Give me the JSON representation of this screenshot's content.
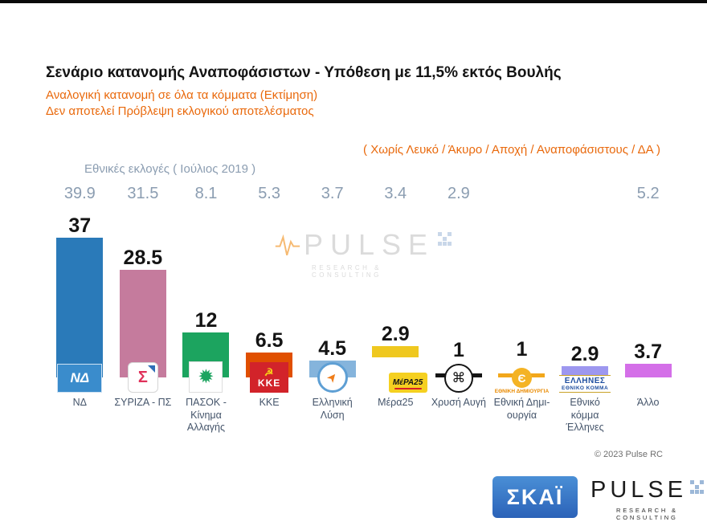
{
  "header": {
    "title": "Σενάριο κατανομής Αναποφάσιστων - Υπόθεση με 11,5% εκτός Βουλής",
    "subtitle1": "Αναλογική κατανομή σε όλα τα κόμματα   (Εκτίμηση)",
    "subtitle2": "Δεν αποτελεί Πρόβλεψη εκλογικού αποτελέσματος",
    "exclusion_note": "( Χωρίς Λευκό / Άκυρο / Αποχή / Αναποφάσιστους / ΔΑ )",
    "previous_label": "Εθνικές εκλογές  ( Ιούλιος 2019 )"
  },
  "chart_data": {
    "type": "bar",
    "title": "Σενάριο κατανομής Αναποφάσιστων - Υπόθεση με 11,5% εκτός Βουλής",
    "subtitle": "Αναλογική κατανομή σε όλα τα κόμματα (Εκτίμηση) - Δεν αποτελεί Πρόβλεψη εκλογικού αποτελέσματος",
    "categories": [
      "ΝΔ",
      "ΣΥΡΙΖΑ - ΠΣ",
      "ΠΑΣΟΚ - Κίνημα Αλλαγής",
      "ΚΚΕ",
      "Ελληνική Λύση",
      "Μέρα25",
      "Χρυσή Αυγή",
      "Εθνική Δημι- ουργία",
      "Εθνικό κόμμα Έλληνες",
      "Άλλο"
    ],
    "series": [
      {
        "name": "Εκτίμηση",
        "values": [
          37,
          28.5,
          12,
          6.5,
          4.5,
          2.9,
          1,
          1,
          2.9,
          3.7
        ]
      },
      {
        "name": "Εθνικές εκλογές ( Ιούλιος 2019 )",
        "values": [
          39.9,
          31.5,
          8.1,
          5.3,
          3.7,
          3.4,
          2.9,
          null,
          null,
          5.2
        ]
      }
    ],
    "colors": [
      "#2a7ab9",
      "#c57b9d",
      "#1ca45f",
      "#e04f00",
      "#85b4dc",
      "#efc81f",
      "#141414",
      "#f2a71b",
      "#9d97ef",
      "#d46fe8"
    ],
    "xlabel": "",
    "ylabel": "",
    "ylim": [
      0,
      42
    ],
    "grid": false,
    "legend_position": "none"
  },
  "parties": [
    {
      "id": "nd",
      "logo": "nd",
      "logo_text": "ΝΔ"
    },
    {
      "id": "syriza",
      "logo": "syriza",
      "logo_text": "Σ"
    },
    {
      "id": "pasok",
      "logo": "pasok",
      "logo_text": "✹"
    },
    {
      "id": "kke",
      "logo": "kke",
      "logo_icon": "☭",
      "logo_text": "ΚΚΕ"
    },
    {
      "id": "elliniki-lysi",
      "logo": "lysi",
      "logo_text": "➤"
    },
    {
      "id": "mera25",
      "logo": "mera25",
      "logo_text": "ΜέΡΑ25"
    },
    {
      "id": "xrysi-avgi",
      "logo": "xa",
      "logo_text": "⌘"
    },
    {
      "id": "ethniki-dimiourgia",
      "logo": "ethdim",
      "logo_text": "Є",
      "logo_subtext": "ΕΘΝΙΚΗ ΔΗΜΙΟΥΡΓΙΑ"
    },
    {
      "id": "ellines",
      "logo": "ellines",
      "logo_text": "ΕΛΛΗΝΕΣ",
      "logo_subtext": "ΕΘΝΙΚΟ ΚΟΜΜΑ"
    },
    {
      "id": "allo",
      "logo": "none",
      "logo_text": ""
    }
  ],
  "watermark": {
    "name": "PULSE",
    "tagline": "RESEARCH & CONSULTING"
  },
  "footer": {
    "copyright": "© 2023 Pulse RC",
    "skai_label": "ΣΚΑΪ",
    "pulse_name": "PULSE",
    "pulse_tagline": "RESEARCH & CONSULTING"
  },
  "colors": {
    "accent_orange": "#e9690c",
    "muted_blue_gray": "#8b9db1",
    "title_black": "#141414"
  }
}
